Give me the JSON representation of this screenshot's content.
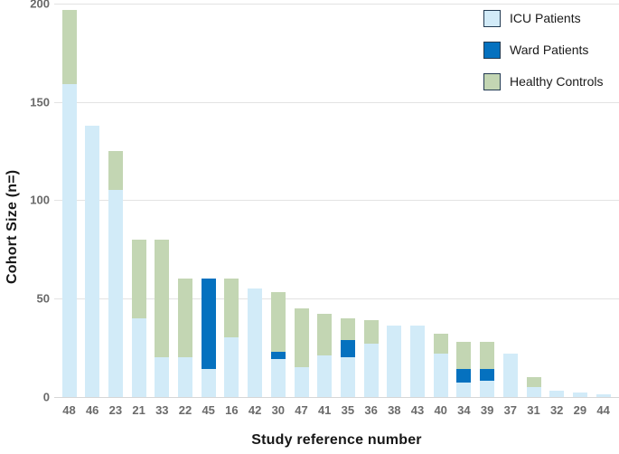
{
  "figure_title": "",
  "legend": {
    "items": [
      {
        "key": "icu",
        "label": "ICU Patients",
        "color": "#d2ebf8"
      },
      {
        "key": "ward",
        "label": "Ward Patients",
        "color": "#0571bf"
      },
      {
        "key": "healthy",
        "label": "Healthy Controls",
        "color": "#c3d6b3"
      }
    ],
    "swatch_border_color": "#223a52"
  },
  "axes": {
    "y_title": "Cohort Size (n=)",
    "x_title": "Study reference number",
    "y_tick_labels": [
      "0",
      "50",
      "100",
      "150",
      "200"
    ]
  },
  "chart_data": {
    "type": "bar",
    "stacked": true,
    "title": "",
    "xlabel": "Study reference number",
    "ylabel": "Cohort Size (n=)",
    "ylim": [
      0,
      200
    ],
    "y_ticks": [
      0,
      50,
      100,
      150,
      200
    ],
    "grid": true,
    "legend_position": "top-right",
    "categories": [
      "48",
      "46",
      "23",
      "21",
      "33",
      "22",
      "45",
      "16",
      "42",
      "30",
      "47",
      "41",
      "35",
      "36",
      "38",
      "43",
      "40",
      "34",
      "39",
      "37",
      "31",
      "32",
      "29",
      "44"
    ],
    "series": [
      {
        "name": "ICU Patients",
        "color": "#d2ebf8",
        "values": [
          159,
          138,
          105,
          40,
          20,
          20,
          14,
          30,
          55,
          19,
          15,
          21,
          20,
          27,
          36,
          36,
          22,
          7,
          8,
          22,
          5,
          3,
          2,
          1
        ]
      },
      {
        "name": "Ward Patients",
        "color": "#0571bf",
        "values": [
          0,
          0,
          0,
          0,
          0,
          0,
          46,
          0,
          0,
          4,
          0,
          0,
          9,
          0,
          0,
          0,
          0,
          7,
          6,
          0,
          0,
          0,
          0,
          0
        ]
      },
      {
        "name": "Healthy Controls",
        "color": "#c3d6b3",
        "values": [
          38,
          0,
          20,
          40,
          60,
          40,
          0,
          30,
          0,
          30,
          30,
          21,
          11,
          12,
          0,
          0,
          10,
          14,
          14,
          0,
          5,
          0,
          0,
          0
        ]
      }
    ],
    "totals": [
      197,
      138,
      125,
      80,
      80,
      60,
      60,
      60,
      55,
      53,
      45,
      42,
      40,
      39,
      36,
      36,
      32,
      28,
      28,
      22,
      10,
      3,
      2,
      1
    ]
  }
}
